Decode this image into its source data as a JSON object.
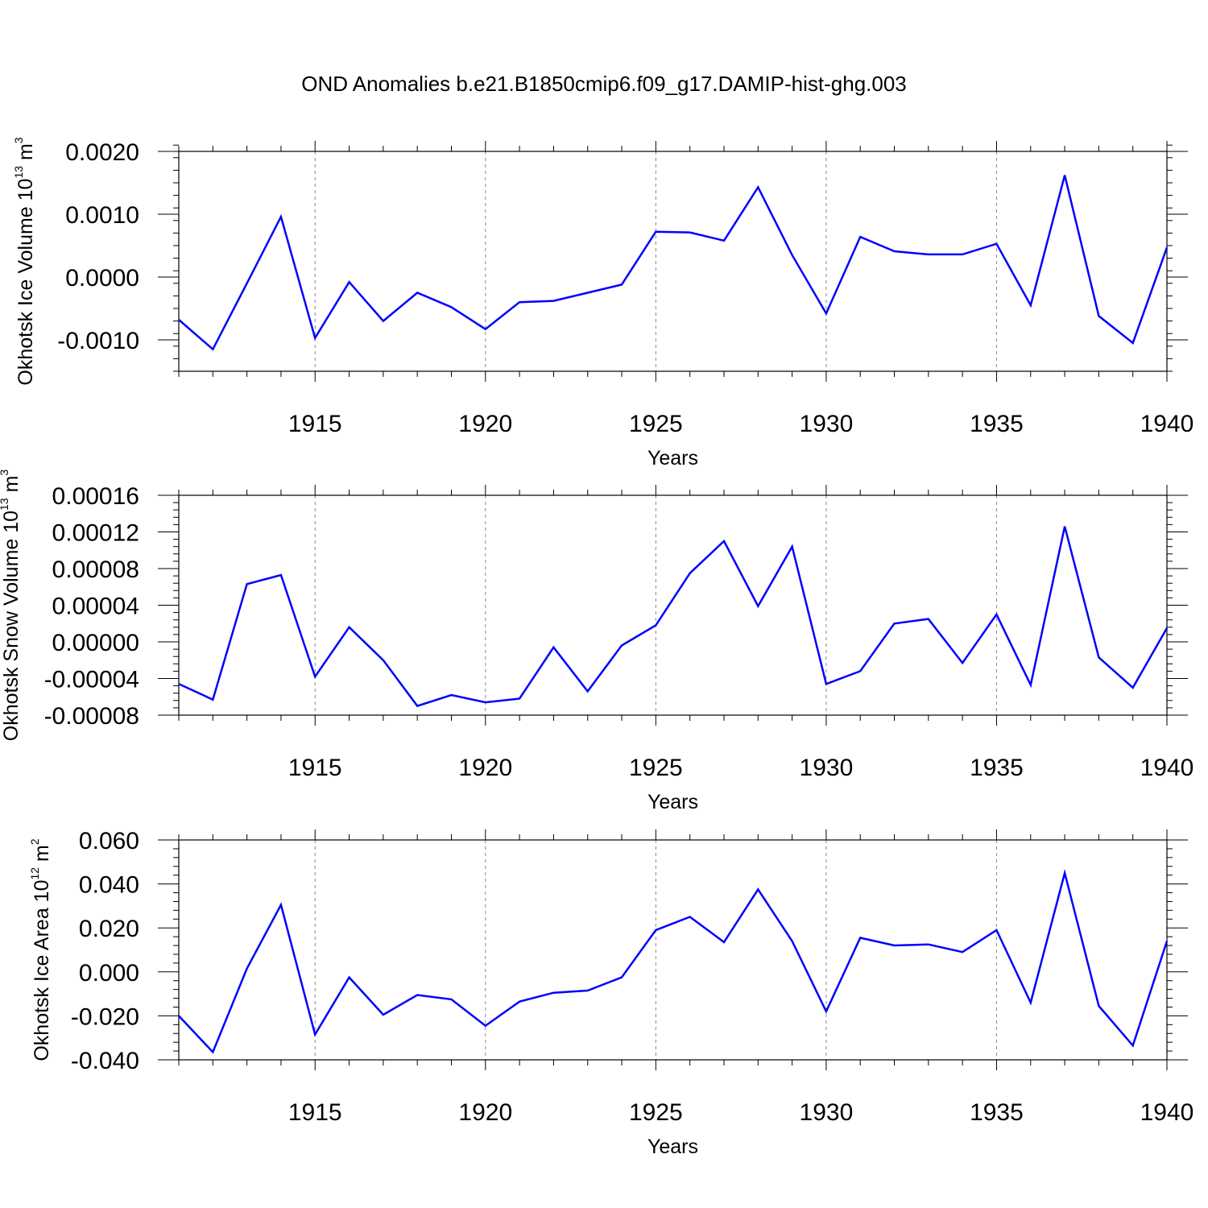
{
  "title": "OND Anomalies b.e21.B1850cmip6.f09_g17.DAMIP-hist-ghg.003",
  "style": {
    "line_color": "#0000ff",
    "axis_color": "#000000",
    "grid_color": "#888888"
  },
  "chart_data": [
    {
      "type": "line",
      "name": "ice-volume",
      "ylabel_main": "Okhotsk Ice Volume 10",
      "ylabel_exp": "13",
      "ylabel_unit": " m",
      "ylabel_unit_exp": "3",
      "xlabel": "Years",
      "x": [
        1911,
        1912,
        1913,
        1914,
        1915,
        1916,
        1917,
        1918,
        1919,
        1920,
        1921,
        1922,
        1923,
        1924,
        1925,
        1926,
        1927,
        1928,
        1929,
        1930,
        1931,
        1932,
        1933,
        1934,
        1935,
        1936,
        1937,
        1938,
        1939,
        1940
      ],
      "values": [
        -0.00068,
        -0.00115,
        -0.0001,
        0.00096,
        -0.00097,
        -8e-05,
        -0.0007,
        -0.00025,
        -0.00048,
        -0.00083,
        -0.0004,
        -0.00038,
        -0.00025,
        -0.00012,
        0.00072,
        0.00071,
        0.00058,
        0.00143,
        0.00035,
        -0.00058,
        0.00064,
        0.00041,
        0.00036,
        0.00036,
        0.00053,
        -0.00045,
        0.00162,
        -0.00062,
        -0.00105,
        0.00047
      ],
      "xlim": [
        1911,
        1940
      ],
      "ylim": [
        -0.0015,
        0.002
      ],
      "yticks": [
        -0.001,
        0.0,
        0.001,
        0.002
      ],
      "ytick_labels": [
        "-0.0010",
        "0.0000",
        "0.0010",
        "0.0020"
      ],
      "xticks": [
        1915,
        1920,
        1925,
        1930,
        1935,
        1940
      ],
      "xtick_labels": [
        "1915",
        "1920",
        "1925",
        "1930",
        "1935",
        "1940"
      ]
    },
    {
      "type": "line",
      "name": "snow-volume",
      "ylabel_main": "Okhotsk Snow Volume 10",
      "ylabel_exp": "13",
      "ylabel_unit": " m",
      "ylabel_unit_exp": "3",
      "xlabel": "Years",
      "x": [
        1911,
        1912,
        1913,
        1914,
        1915,
        1916,
        1917,
        1918,
        1919,
        1920,
        1921,
        1922,
        1923,
        1924,
        1925,
        1926,
        1927,
        1928,
        1929,
        1930,
        1931,
        1932,
        1933,
        1934,
        1935,
        1936,
        1937,
        1938,
        1939,
        1940
      ],
      "values": [
        -4.6e-05,
        -6.3e-05,
        6.3e-05,
        7.3e-05,
        -3.8e-05,
        1.6e-05,
        -2e-05,
        -7e-05,
        -5.8e-05,
        -6.6e-05,
        -6.2e-05,
        -6e-06,
        -5.4e-05,
        -4e-06,
        1.8e-05,
        7.5e-05,
        0.00011,
        3.9e-05,
        0.000104,
        -4.6e-05,
        -3.2e-05,
        2e-05,
        2.5e-05,
        -2.3e-05,
        3e-05,
        -4.7e-05,
        0.000126,
        -1.7e-05,
        -5e-05,
        1.5e-05
      ],
      "xlim": [
        1911,
        1940
      ],
      "ylim": [
        -8e-05,
        0.00016
      ],
      "yticks": [
        -8e-05,
        -4e-05,
        0.0,
        4e-05,
        8e-05,
        0.00012,
        0.00016
      ],
      "ytick_labels": [
        "-0.00008",
        "-0.00004",
        "0.00000",
        "0.00004",
        "0.00008",
        "0.00012",
        "0.00016"
      ],
      "xticks": [
        1915,
        1920,
        1925,
        1930,
        1935,
        1940
      ],
      "xtick_labels": [
        "1915",
        "1920",
        "1925",
        "1930",
        "1935",
        "1940"
      ]
    },
    {
      "type": "line",
      "name": "ice-area",
      "ylabel_main": "Okhotsk Ice Area 10",
      "ylabel_exp": "12",
      "ylabel_unit": " m",
      "ylabel_unit_exp": "2",
      "xlabel": "Years",
      "x": [
        1911,
        1912,
        1913,
        1914,
        1915,
        1916,
        1917,
        1918,
        1919,
        1920,
        1921,
        1922,
        1923,
        1924,
        1925,
        1926,
        1927,
        1928,
        1929,
        1930,
        1931,
        1932,
        1933,
        1934,
        1935,
        1936,
        1937,
        1938,
        1939,
        1940
      ],
      "values": [
        -0.02,
        -0.0365,
        0.0015,
        0.0305,
        -0.0285,
        -0.0025,
        -0.0195,
        -0.0105,
        -0.0125,
        -0.0245,
        -0.0135,
        -0.0095,
        -0.0085,
        -0.0025,
        0.019,
        0.025,
        0.0135,
        0.0375,
        0.014,
        -0.018,
        0.0155,
        0.012,
        0.0125,
        0.009,
        0.019,
        -0.014,
        0.045,
        -0.0155,
        -0.0335,
        0.014
      ],
      "xlim": [
        1911,
        1940
      ],
      "ylim": [
        -0.04,
        0.06
      ],
      "yticks": [
        -0.04,
        -0.02,
        0.0,
        0.02,
        0.04,
        0.06
      ],
      "ytick_labels": [
        "-0.040",
        "-0.020",
        "0.000",
        "0.020",
        "0.040",
        "0.060"
      ],
      "xticks": [
        1915,
        1920,
        1925,
        1930,
        1935,
        1940
      ],
      "xtick_labels": [
        "1915",
        "1920",
        "1925",
        "1930",
        "1935",
        "1940"
      ]
    }
  ]
}
